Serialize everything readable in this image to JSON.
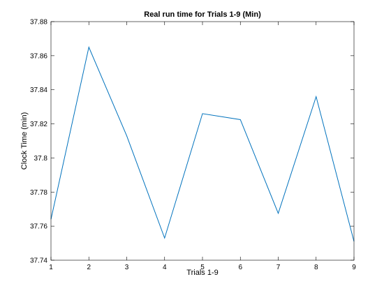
{
  "chart_data": {
    "type": "line",
    "title": "Real run time for Trials 1-9 (Min)",
    "xlabel": "Trials 1-9",
    "ylabel": "Clock Time (min)",
    "xlim": [
      1,
      9
    ],
    "ylim": [
      37.74,
      37.88
    ],
    "xticks": [
      "1",
      "2",
      "3",
      "4",
      "5",
      "6",
      "7",
      "8",
      "9"
    ],
    "yticks": [
      "37.74",
      "37.76",
      "37.78",
      "37.8",
      "37.82",
      "37.84",
      "37.86",
      "37.88"
    ],
    "grid": false,
    "series": [
      {
        "color": "#0072BD",
        "x": [
          1,
          2,
          3,
          4,
          5,
          6,
          7,
          8,
          9
        ],
        "y": [
          37.764,
          37.865,
          37.813,
          37.753,
          37.826,
          37.8225,
          37.7675,
          37.836,
          37.751
        ]
      }
    ]
  }
}
